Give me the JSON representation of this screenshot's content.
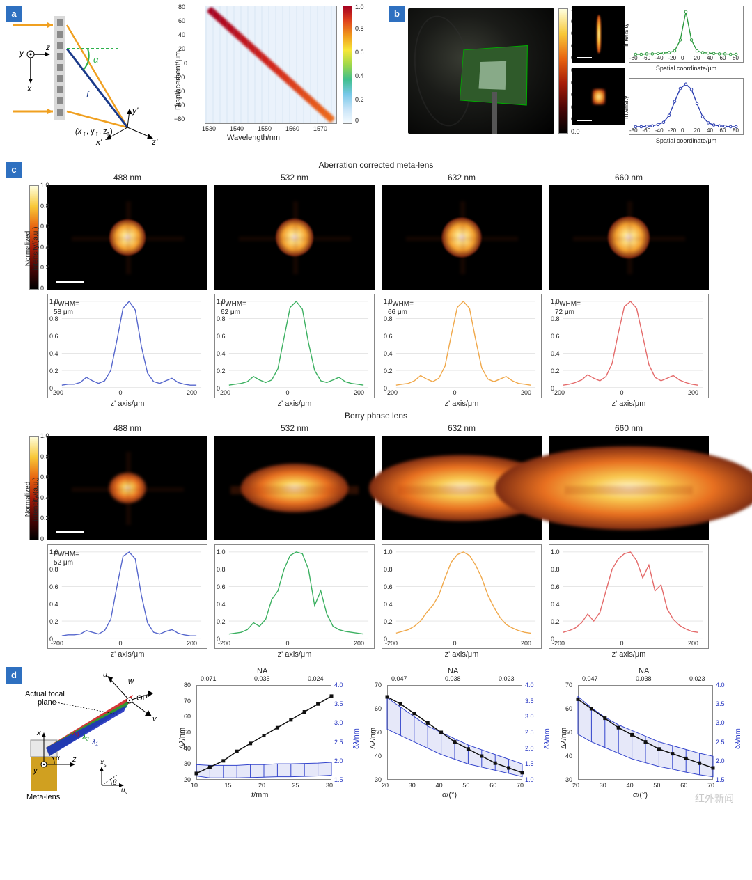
{
  "a": {
    "label": "a",
    "schematic": {
      "alpha": "α",
      "f": "f",
      "focal_point": "(x_f, y_f, z_f)",
      "axes_global": [
        "x",
        "y",
        "z"
      ],
      "axes_local": [
        "x'",
        "y'",
        "z'"
      ]
    },
    "heatmap": {
      "type": "heatmap",
      "xlabel": "Wavelength/nm",
      "ylabel": "Displacement/μm",
      "xticks": [
        1530,
        1540,
        1550,
        1560,
        1570
      ],
      "yticks": [
        -80,
        -60,
        -40,
        -20,
        0,
        20,
        40,
        60,
        80
      ],
      "cbar_ticks": [
        0,
        0.2,
        0.4,
        0.6,
        0.8,
        1.0
      ],
      "bg_color": "#eaf2fb",
      "diag_colors": [
        "#a60020",
        "#d2261d",
        "#ed6c1a"
      ]
    }
  },
  "b": {
    "label": "b",
    "colorbar_ticks": [
      0,
      0.1,
      0.2,
      0.3,
      0.4,
      0.5,
      0.6,
      0.7,
      0.8,
      0.9,
      1.0
    ],
    "charts": [
      {
        "color": "#2b9a3e",
        "xlabel": "Spatial coordinate/μm",
        "ylabel": "Intensity",
        "xticks": [
          -80,
          -60,
          -40,
          -20,
          0,
          20,
          40,
          60,
          80
        ],
        "profile": [
          0.02,
          0.02,
          0.03,
          0.03,
          0.04,
          0.05,
          0.06,
          0.1,
          0.35,
          1.0,
          0.35,
          0.1,
          0.06,
          0.05,
          0.04,
          0.03,
          0.03,
          0.02,
          0.02
        ]
      },
      {
        "color": "#2a3db0",
        "xlabel": "Spatial coordinate/μm",
        "ylabel": "Intensity",
        "xticks": [
          -80,
          -60,
          -40,
          -20,
          0,
          20,
          40,
          60,
          80
        ],
        "profile": [
          0.02,
          0.02,
          0.03,
          0.04,
          0.07,
          0.12,
          0.28,
          0.6,
          0.9,
          1.0,
          0.88,
          0.55,
          0.25,
          0.11,
          0.06,
          0.04,
          0.03,
          0.02,
          0.02
        ]
      }
    ]
  },
  "c": {
    "label": "c",
    "sections": [
      {
        "title": "Aberration corrected meta-lens",
        "wavelengths": [
          "488 nm",
          "532 nm",
          "632 nm",
          "660 nm"
        ],
        "spot_size": [
          52,
          54,
          57,
          60
        ],
        "spot_elong": [
          1.0,
          1.0,
          1.0,
          1.0
        ],
        "fwhm": [
          "58 μm",
          "62 μm",
          "66 μm",
          "72 μm"
        ],
        "colors": [
          "#5566cc",
          "#3bb060",
          "#f0a84a",
          "#e46a6a"
        ],
        "profiles": [
          [
            0.03,
            0.04,
            0.04,
            0.06,
            0.12,
            0.08,
            0.05,
            0.08,
            0.2,
            0.55,
            0.92,
            1.0,
            0.9,
            0.48,
            0.17,
            0.07,
            0.05,
            0.08,
            0.11,
            0.06,
            0.04,
            0.03,
            0.03
          ],
          [
            0.03,
            0.04,
            0.05,
            0.07,
            0.13,
            0.09,
            0.06,
            0.09,
            0.22,
            0.58,
            0.93,
            1.0,
            0.91,
            0.52,
            0.2,
            0.08,
            0.06,
            0.09,
            0.12,
            0.07,
            0.05,
            0.04,
            0.03
          ],
          [
            0.03,
            0.04,
            0.05,
            0.08,
            0.14,
            0.1,
            0.07,
            0.11,
            0.25,
            0.6,
            0.93,
            1.0,
            0.92,
            0.56,
            0.23,
            0.1,
            0.07,
            0.1,
            0.13,
            0.08,
            0.05,
            0.04,
            0.03
          ],
          [
            0.03,
            0.04,
            0.06,
            0.09,
            0.15,
            0.11,
            0.08,
            0.13,
            0.28,
            0.63,
            0.94,
            1.0,
            0.92,
            0.6,
            0.27,
            0.12,
            0.08,
            0.11,
            0.14,
            0.09,
            0.06,
            0.04,
            0.03
          ]
        ],
        "xticks": [
          -200,
          0,
          200
        ],
        "yticks": [
          0,
          0.2,
          0.4,
          0.6,
          0.8,
          1.0
        ]
      },
      {
        "title": "Berry phase lens",
        "wavelengths": [
          "488 nm",
          "532 nm",
          "632 nm",
          "660 nm"
        ],
        "spot_size": [
          44,
          70,
          95,
          120
        ],
        "spot_elong": [
          1.2,
          2.2,
          2.8,
          3.2
        ],
        "fwhm": [
          "52 μm",
          "",
          "",
          ""
        ],
        "colors": [
          "#5566cc",
          "#3bb060",
          "#f0a84a",
          "#e46a6a"
        ],
        "profiles": [
          [
            0.03,
            0.04,
            0.04,
            0.05,
            0.09,
            0.07,
            0.05,
            0.09,
            0.22,
            0.6,
            0.95,
            1.0,
            0.92,
            0.5,
            0.18,
            0.07,
            0.05,
            0.08,
            0.1,
            0.06,
            0.04,
            0.03,
            0.03
          ],
          [
            0.05,
            0.06,
            0.07,
            0.1,
            0.18,
            0.14,
            0.22,
            0.45,
            0.55,
            0.8,
            0.96,
            1.0,
            0.98,
            0.8,
            0.38,
            0.55,
            0.28,
            0.14,
            0.1,
            0.08,
            0.07,
            0.06,
            0.05
          ],
          [
            0.06,
            0.08,
            0.1,
            0.14,
            0.2,
            0.3,
            0.38,
            0.5,
            0.7,
            0.88,
            0.97,
            1.0,
            0.96,
            0.85,
            0.7,
            0.5,
            0.36,
            0.24,
            0.16,
            0.12,
            0.09,
            0.07,
            0.06
          ],
          [
            0.07,
            0.09,
            0.12,
            0.18,
            0.28,
            0.2,
            0.3,
            0.55,
            0.8,
            0.92,
            0.98,
            1.0,
            0.9,
            0.7,
            0.85,
            0.55,
            0.62,
            0.34,
            0.22,
            0.15,
            0.11,
            0.08,
            0.07
          ]
        ],
        "xticks": [
          -200,
          0,
          200
        ],
        "yticks": [
          0,
          0.2,
          0.4,
          0.6,
          0.8,
          1.0
        ]
      }
    ],
    "xlabel": "z' axis/μm",
    "ylabel": "Normalized\nintensity/(a.u.)",
    "hotbar_ticks": [
      0,
      0.2,
      0.4,
      0.6,
      0.8,
      1.0
    ]
  },
  "d": {
    "label": "d",
    "schematic": {
      "labels": [
        "Actual focal plane",
        "OP",
        "Meta-lens"
      ],
      "lambdas": [
        "λ₃",
        "λ₂",
        "λ₁"
      ],
      "axes": [
        "u",
        "v",
        "w",
        "x",
        "y",
        "z",
        "x_s",
        "u_s"
      ],
      "beta": "β",
      "alpha": "α"
    },
    "charts": [
      {
        "top_label": "NA",
        "top_ticks": [
          "0.071",
          "0.035",
          "0.024"
        ],
        "xlabel": "f/mm",
        "xticks": [
          10,
          15,
          20,
          25,
          30
        ],
        "ylabel_left": "Δλ/nm",
        "yticks_left": [
          20,
          30,
          40,
          50,
          60,
          70,
          80
        ],
        "ylabel_right": "δλ/nm",
        "yticks_right": [
          1.5,
          2.0,
          2.5,
          3.0,
          3.5,
          4.0
        ],
        "line_black": [
          [
            10,
            24
          ],
          [
            12,
            28
          ],
          [
            14,
            32
          ],
          [
            16,
            38
          ],
          [
            18,
            43
          ],
          [
            20,
            48
          ],
          [
            22,
            53
          ],
          [
            24,
            58
          ],
          [
            26,
            63
          ],
          [
            28,
            68
          ],
          [
            30,
            73
          ]
        ],
        "band_blue": [
          [
            10,
            1.6,
            1.9
          ],
          [
            12,
            1.55,
            1.88
          ],
          [
            14,
            1.55,
            1.88
          ],
          [
            16,
            1.55,
            1.88
          ],
          [
            18,
            1.56,
            1.9
          ],
          [
            20,
            1.57,
            1.9
          ],
          [
            22,
            1.58,
            1.92
          ],
          [
            24,
            1.58,
            1.92
          ],
          [
            26,
            1.59,
            1.93
          ],
          [
            28,
            1.6,
            1.94
          ],
          [
            30,
            1.62,
            1.96
          ]
        ],
        "color_black": "#111",
        "color_blue": "#3344cc"
      },
      {
        "top_label": "NA",
        "top_ticks": [
          "0.047",
          "0.038",
          "0.023"
        ],
        "xlabel": "α/(°)",
        "xticks": [
          20,
          30,
          40,
          50,
          60,
          70
        ],
        "ylabel_left": "Δλ/nm",
        "yticks_left": [
          30,
          40,
          50,
          60,
          70
        ],
        "ylabel_right": "δλ/nm",
        "yticks_right": [
          1.0,
          1.5,
          2.0,
          2.5,
          3.0,
          3.5,
          4.0
        ],
        "line_black": [
          [
            20,
            65
          ],
          [
            25,
            62
          ],
          [
            30,
            58
          ],
          [
            35,
            54
          ],
          [
            40,
            50
          ],
          [
            45,
            46
          ],
          [
            50,
            43
          ],
          [
            55,
            40
          ],
          [
            60,
            37
          ],
          [
            65,
            35
          ],
          [
            70,
            33
          ]
        ],
        "band_blue": [
          [
            20,
            2.6,
            3.6
          ],
          [
            25,
            2.4,
            3.3
          ],
          [
            30,
            2.2,
            3.0
          ],
          [
            35,
            2.0,
            2.7
          ],
          [
            40,
            1.8,
            2.5
          ],
          [
            45,
            1.65,
            2.3
          ],
          [
            50,
            1.5,
            2.1
          ],
          [
            55,
            1.4,
            1.95
          ],
          [
            60,
            1.3,
            1.8
          ],
          [
            65,
            1.2,
            1.65
          ],
          [
            70,
            1.1,
            1.5
          ]
        ],
        "color_black": "#111",
        "color_blue": "#3344cc"
      },
      {
        "top_label": "NA",
        "top_ticks": [
          "0.047",
          "0.038",
          "0.023"
        ],
        "xlabel": "α/(°)",
        "xticks": [
          20,
          30,
          40,
          50,
          60,
          70
        ],
        "ylabel_left": "Δλ/nm",
        "yticks_left": [
          30,
          40,
          50,
          60,
          70
        ],
        "ylabel_right": "δλ/nm",
        "yticks_right": [
          1.5,
          2.0,
          2.5,
          3.0,
          3.5,
          4.0
        ],
        "line_black": [
          [
            20,
            64
          ],
          [
            25,
            60
          ],
          [
            30,
            56
          ],
          [
            35,
            52
          ],
          [
            40,
            49
          ],
          [
            45,
            46
          ],
          [
            50,
            43
          ],
          [
            55,
            41
          ],
          [
            60,
            39
          ],
          [
            65,
            37
          ],
          [
            70,
            35
          ]
        ],
        "band_blue": [
          [
            20,
            2.7,
            3.7
          ],
          [
            25,
            2.5,
            3.4
          ],
          [
            30,
            2.35,
            3.15
          ],
          [
            35,
            2.2,
            2.95
          ],
          [
            40,
            2.05,
            2.8
          ],
          [
            45,
            1.95,
            2.65
          ],
          [
            50,
            1.85,
            2.5
          ],
          [
            55,
            1.78,
            2.4
          ],
          [
            60,
            1.7,
            2.3
          ],
          [
            65,
            1.63,
            2.2
          ],
          [
            70,
            1.58,
            2.12
          ]
        ],
        "color_black": "#111",
        "color_blue": "#3344cc"
      }
    ]
  },
  "watermark": "红外新闻"
}
